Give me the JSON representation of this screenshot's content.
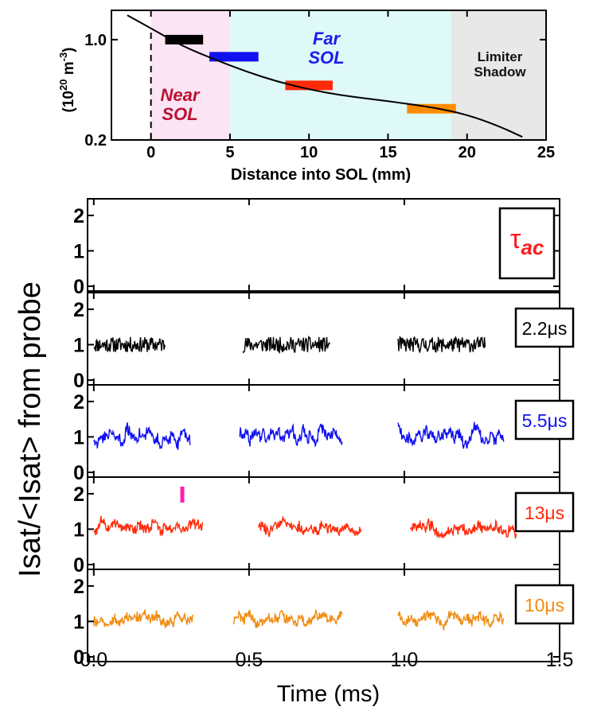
{
  "chart_data": [
    {
      "type": "line",
      "ylabel": "(10^20 m^-3)",
      "ylabel_base": "(10",
      "ylabel_exp1": "20",
      "ylabel_mid": " m",
      "ylabel_exp2": "-3",
      "ylabel_end": ")",
      "xlabel": "Distance into SOL (mm)",
      "xlim": [
        -2.5,
        25
      ],
      "ylim": [
        0.2,
        1.6
      ],
      "y_scale": "log",
      "x_ticks": [
        "0",
        "5",
        "10",
        "15",
        "20",
        "25"
      ],
      "x_tick_values": [
        0,
        5,
        10,
        15,
        20,
        25
      ],
      "y_ticks": [
        "0.2",
        "1.0"
      ],
      "y_tick_values": [
        0.2,
        1.0
      ],
      "regions": [
        {
          "label_lines": [
            "Near",
            "SOL"
          ],
          "x_range": [
            0,
            5
          ],
          "fill": "#fbe4f3",
          "text_color": "#bb1133"
        },
        {
          "label_lines": [
            "Far",
            "SOL"
          ],
          "x_range": [
            5,
            19
          ],
          "fill": "#def9f7",
          "text_color": "#1c1cee"
        },
        {
          "label_lines": [
            "Limiter",
            "Shadow"
          ],
          "x_range": [
            19,
            25
          ],
          "fill": "#e8e8e8",
          "text_color": "#111111"
        }
      ],
      "density_profile": {
        "x": [
          -1.5,
          0,
          2,
          4,
          6,
          8,
          10,
          12,
          14,
          16,
          18,
          20,
          22,
          23.5
        ],
        "y": [
          1.48,
          1.2,
          0.9,
          0.73,
          0.6,
          0.51,
          0.45,
          0.41,
          0.385,
          0.36,
          0.335,
          0.3,
          0.25,
          0.21
        ]
      },
      "probe_bars": [
        {
          "x_range": [
            0.9,
            3.3
          ],
          "y": 1.0,
          "color": "#000000"
        },
        {
          "x_range": [
            3.7,
            6.8
          ],
          "y": 0.76,
          "color": "#1010f0"
        },
        {
          "x_range": [
            8.5,
            11.5
          ],
          "y": 0.48,
          "color": "#ff2a0a"
        },
        {
          "x_range": [
            16.2,
            19.3
          ],
          "y": 0.33,
          "color": "#ff8c00"
        }
      ],
      "vline_x": 0
    },
    {
      "type": "line",
      "ylabel": "Isat/<Isat> from probe",
      "xlabel": "Time (ms)",
      "xlim": [
        -0.02,
        1.5
      ],
      "ylim": [
        0,
        2.2
      ],
      "x_ticks": [
        "0.0",
        "0.5",
        "1.0",
        "1.5"
      ],
      "x_tick_values": [
        0.0,
        0.5,
        1.0,
        1.5
      ],
      "y_ticks": [
        "0",
        "1",
        "2"
      ],
      "y_tick_values": [
        0,
        1,
        2
      ],
      "tau_label": "τ",
      "tau_sub": "ac",
      "panels": [
        {
          "label": "",
          "color": "#000000",
          "segments": []
        },
        {
          "label": "2.2μs",
          "color": "#000000",
          "mean": 1.0,
          "amp": 0.22,
          "seed": 11,
          "smooth": 1,
          "segments": [
            [
              0.0,
              0.23
            ],
            [
              0.48,
              0.76
            ],
            [
              0.98,
              1.26
            ]
          ]
        },
        {
          "label": "5.5μs",
          "color": "#1010f0",
          "mean": 1.0,
          "amp": 0.45,
          "seed": 23,
          "smooth": 3,
          "segments": [
            [
              0.0,
              0.31
            ],
            [
              0.47,
              0.8
            ],
            [
              0.98,
              1.32
            ]
          ]
        },
        {
          "label": "13μs",
          "color": "#ff2a0a",
          "mean": 1.0,
          "amp": 0.45,
          "seed": 37,
          "smooth": 5,
          "segments": [
            [
              0.0,
              0.35
            ],
            [
              0.53,
              0.86
            ],
            [
              1.02,
              1.36
            ]
          ],
          "highlight": {
            "x": 0.285,
            "color": "#ff1fb0"
          }
        },
        {
          "label": "10μs",
          "color": "#f08c10",
          "mean": 1.05,
          "amp": 0.42,
          "seed": 53,
          "smooth": 4,
          "segments": [
            [
              0.0,
              0.32
            ],
            [
              0.45,
              0.8
            ],
            [
              0.98,
              1.32
            ]
          ]
        }
      ]
    }
  ]
}
